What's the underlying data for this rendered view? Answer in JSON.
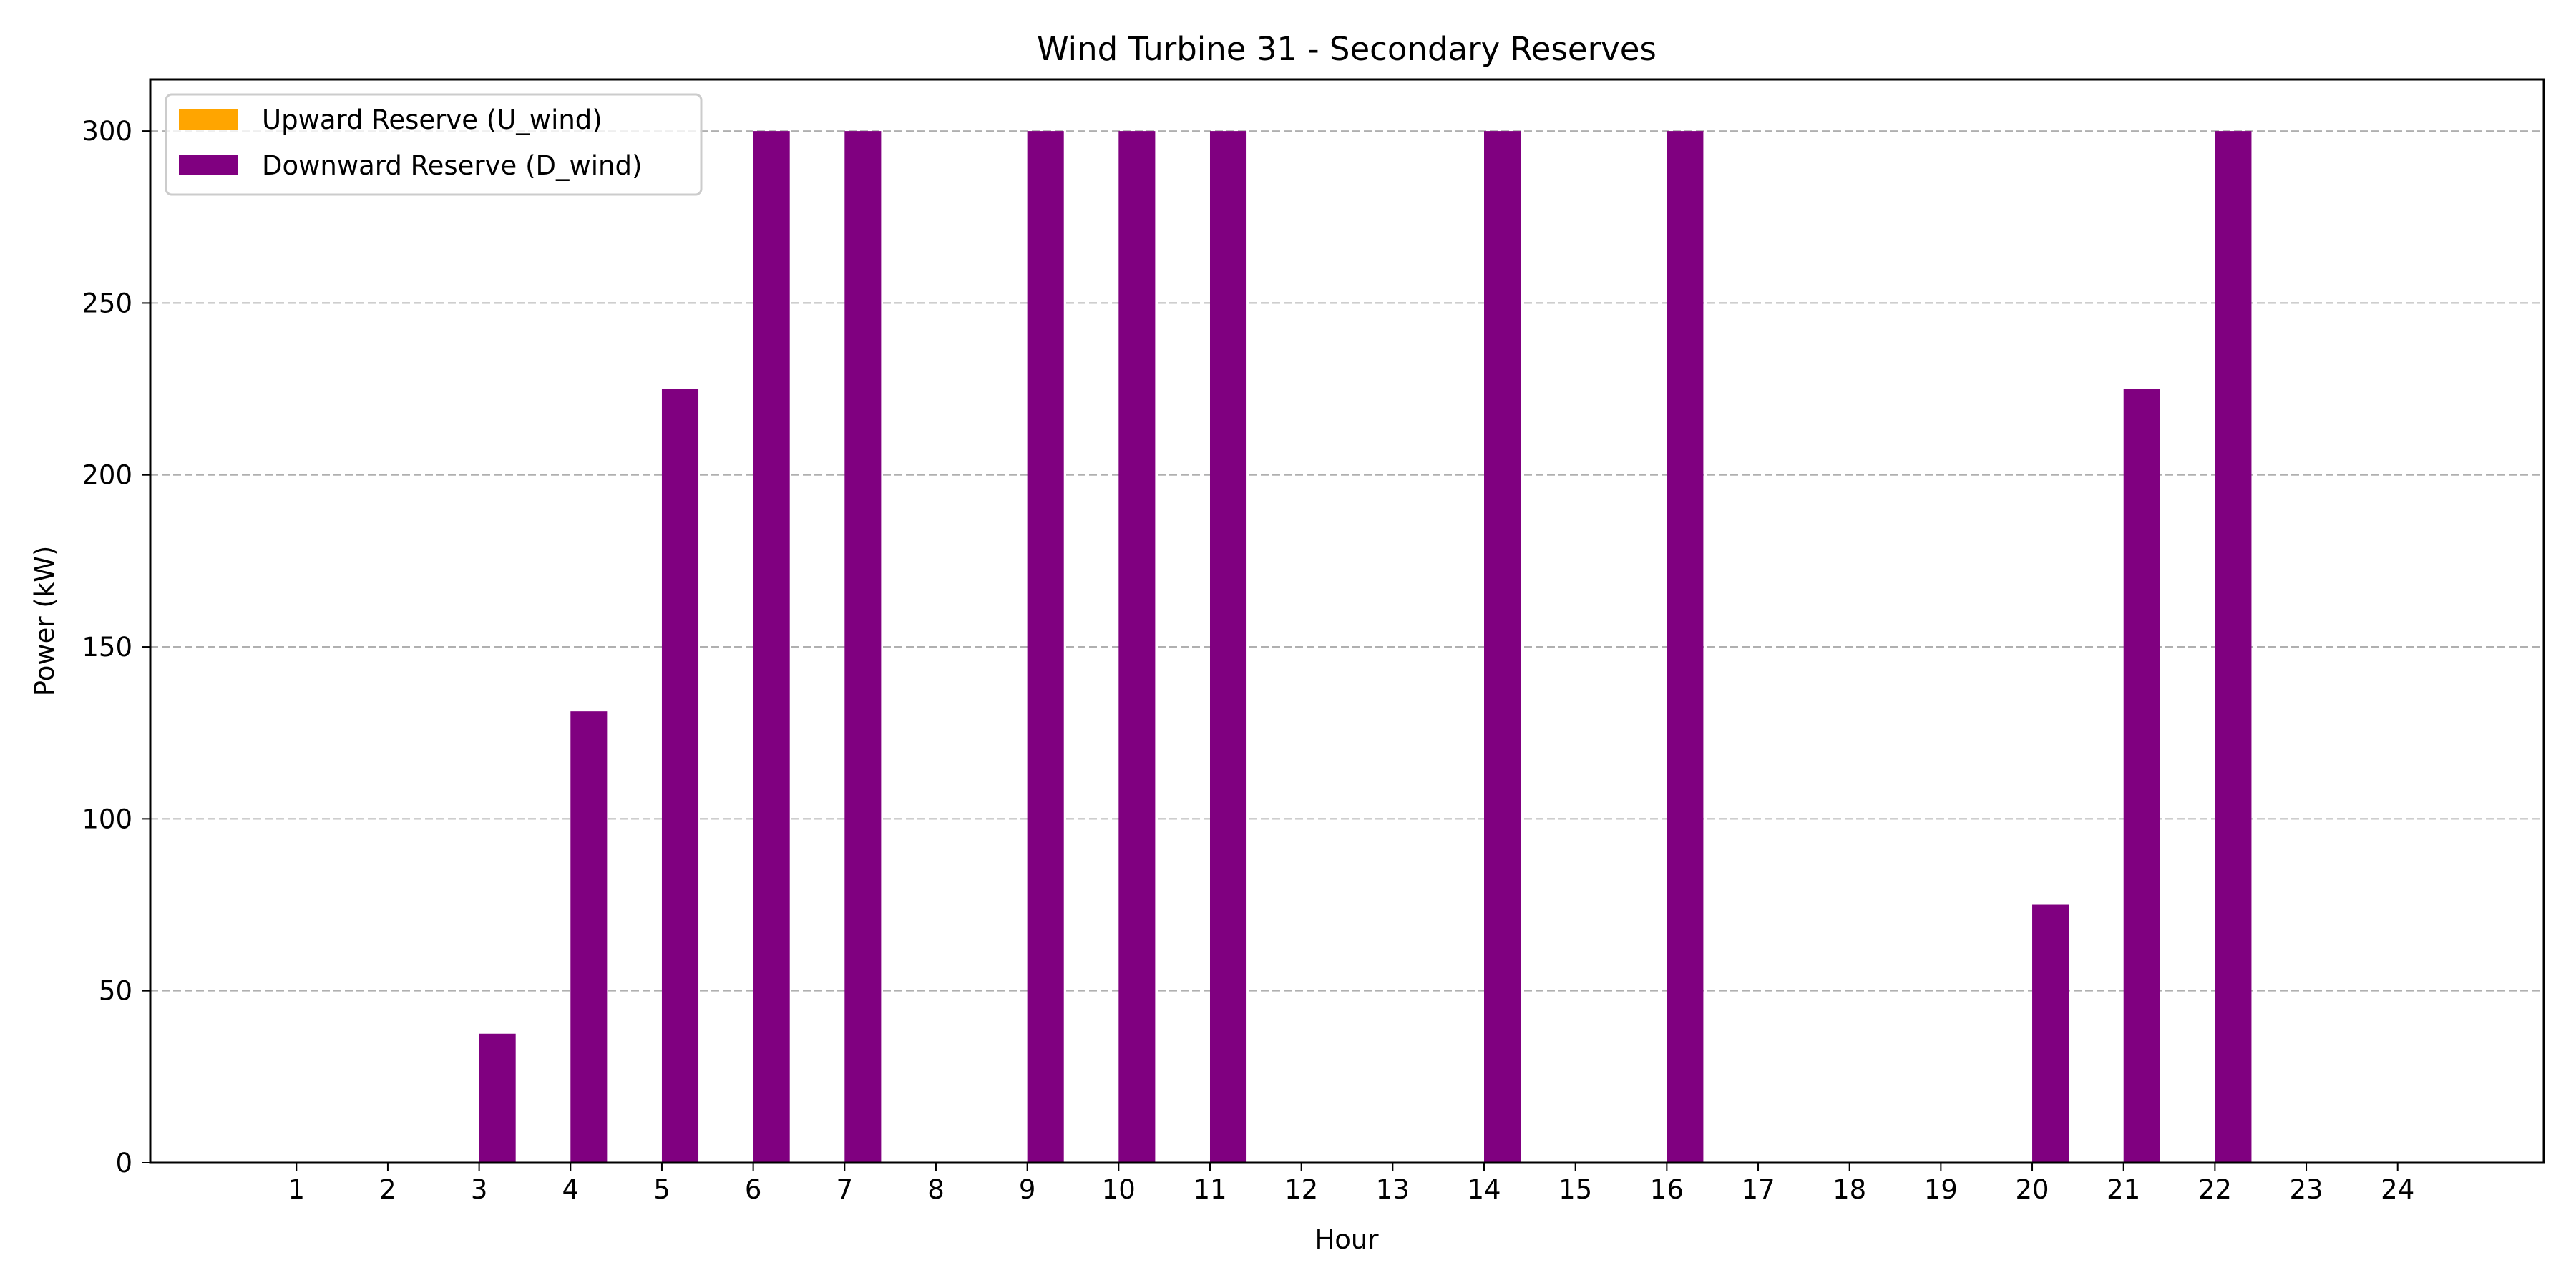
{
  "chart_data": {
    "type": "bar",
    "title": "Wind Turbine 31 - Secondary Reserves",
    "xlabel": "Hour",
    "ylabel": "Power (kW)",
    "categories": [
      "1",
      "2",
      "3",
      "4",
      "5",
      "6",
      "7",
      "8",
      "9",
      "10",
      "11",
      "12",
      "13",
      "14",
      "15",
      "16",
      "17",
      "18",
      "19",
      "20",
      "21",
      "22",
      "23",
      "24"
    ],
    "series": [
      {
        "name": "Upward Reserve (U_wind)",
        "color": "#FFA500",
        "values": [
          0,
          0,
          0,
          0,
          0,
          0,
          0,
          0,
          0,
          0,
          0,
          0,
          0,
          0,
          0,
          0,
          0,
          0,
          0,
          0,
          0,
          0,
          0,
          0
        ]
      },
      {
        "name": "Downward Reserve (D_wind)",
        "color": "#800080",
        "values": [
          0,
          0,
          37.5,
          131.25,
          225,
          300,
          300,
          0,
          300,
          300,
          300,
          0,
          0,
          300,
          0,
          300,
          0,
          0,
          0,
          75,
          225,
          300,
          0,
          0
        ]
      }
    ],
    "ylim": [
      0,
      315
    ],
    "yticks": [
      0,
      50,
      100,
      150,
      200,
      250,
      300
    ],
    "xlim": [
      -0.6,
      25.6
    ],
    "grid": "y-dashed",
    "legend": "upper-left"
  }
}
